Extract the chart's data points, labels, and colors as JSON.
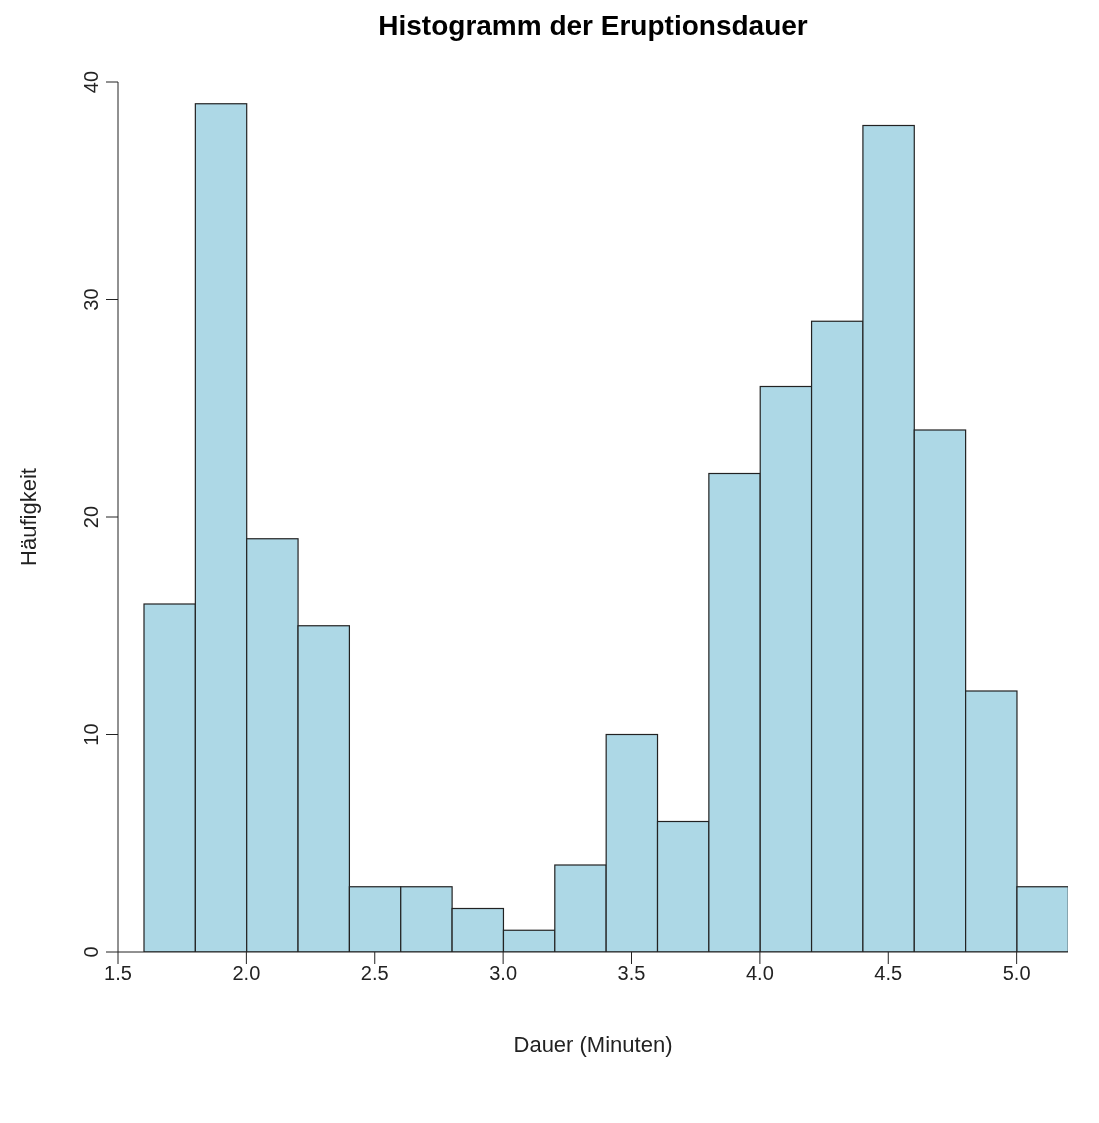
{
  "chart_data": {
    "type": "histogram",
    "title": "Histogramm der Eruptionsdauer",
    "xlabel": "Dauer (Minuten)",
    "ylabel": "Häufigkeit",
    "bins": [
      1.6,
      1.8,
      2.0,
      2.2,
      2.4,
      2.6,
      2.8,
      3.0,
      3.2,
      3.4,
      3.6,
      3.8,
      4.0,
      4.2,
      4.4,
      4.6,
      4.8,
      5.0,
      5.2
    ],
    "values": [
      16,
      39,
      19,
      15,
      3,
      3,
      2,
      1,
      4,
      10,
      6,
      22,
      26,
      29,
      38,
      24,
      12,
      3
    ],
    "color": "#add8e6",
    "xlim": [
      1.5,
      5.2
    ],
    "xticks": [
      {
        "value": 1.5,
        "label": "1.5"
      },
      {
        "value": 2,
        "label": "2.0"
      },
      {
        "value": 2.5,
        "label": "2.5"
      },
      {
        "value": 3,
        "label": "3.0"
      },
      {
        "value": 3.5,
        "label": "3.5"
      },
      {
        "value": 4,
        "label": "4.0"
      },
      {
        "value": 4.5,
        "label": "4.5"
      },
      {
        "value": 5,
        "label": "5.0"
      }
    ],
    "ylim": [
      0,
      40
    ],
    "yticks": [
      0,
      10,
      20,
      30,
      40
    ],
    "grid": false,
    "legend": false
  }
}
